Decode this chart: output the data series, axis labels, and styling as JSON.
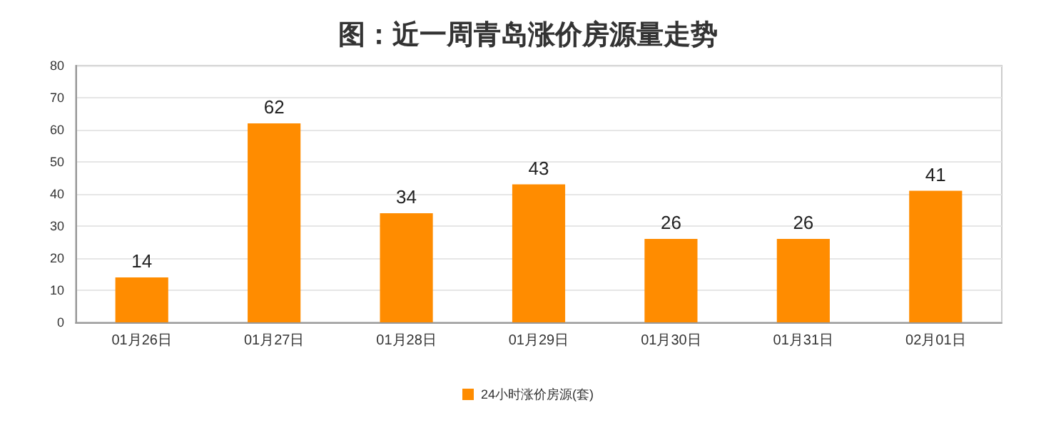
{
  "chart_data": {
    "type": "bar",
    "title": "图：近一周青岛涨价房源量走势",
    "categories": [
      "01月26日",
      "01月27日",
      "01月28日",
      "01月29日",
      "01月30日",
      "01月31日",
      "02月01日"
    ],
    "series": [
      {
        "name": "24小时涨价房源(套)",
        "color": "#ff8c00",
        "values": [
          14,
          62,
          34,
          43,
          26,
          26,
          41
        ]
      }
    ],
    "ylim": [
      0,
      80
    ],
    "yticks": [
      0,
      10,
      20,
      30,
      40,
      50,
      60,
      70,
      80
    ],
    "grid": "y",
    "legend": "bottom",
    "data_labels": true
  }
}
